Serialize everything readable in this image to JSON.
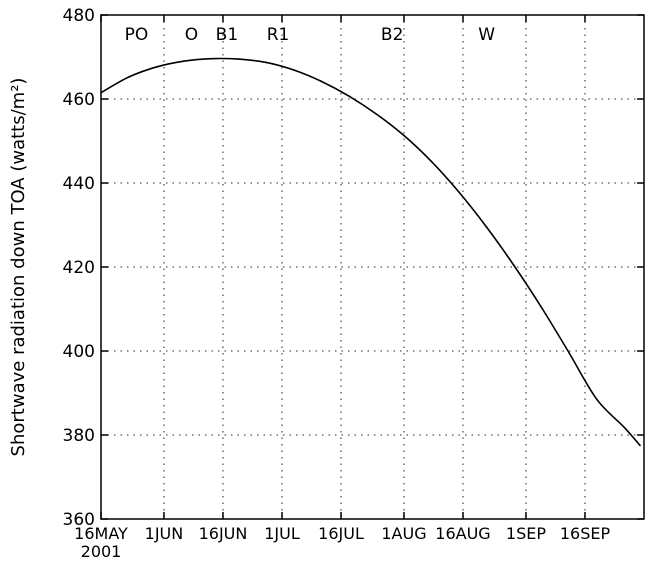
{
  "chart_data": {
    "type": "line",
    "title": "",
    "xlabel": "",
    "ylabel": "Shortwave radiation down TOA (watts/m²)",
    "ylim": [
      360,
      480
    ],
    "xlim": [
      "2001-05-16",
      "2001-09-30"
    ],
    "year_label": "2001",
    "grid": true,
    "yticks": [
      360,
      380,
      400,
      420,
      440,
      460,
      480
    ],
    "xticks": [
      {
        "date": "2001-05-16",
        "label": "16MAY"
      },
      {
        "date": "2001-06-01",
        "label": "1JUN"
      },
      {
        "date": "2001-06-16",
        "label": "16JUN"
      },
      {
        "date": "2001-07-01",
        "label": "1JUL"
      },
      {
        "date": "2001-07-16",
        "label": "16JUL"
      },
      {
        "date": "2001-08-01",
        "label": "1AUG"
      },
      {
        "date": "2001-08-16",
        "label": "16AUG"
      },
      {
        "date": "2001-09-01",
        "label": "1SEP"
      },
      {
        "date": "2001-09-16",
        "label": "16SEP"
      }
    ],
    "annotations": [
      {
        "text": "PO",
        "date": "2001-05-25"
      },
      {
        "text": "O",
        "date": "2001-06-08"
      },
      {
        "text": "B1",
        "date": "2001-06-17"
      },
      {
        "text": "R1",
        "date": "2001-06-30"
      },
      {
        "text": "B2",
        "date": "2001-07-29"
      },
      {
        "text": "W",
        "date": "2001-08-22"
      }
    ],
    "series": [
      {
        "x": [
          "2001-05-16",
          "2001-05-23",
          "2001-05-30",
          "2001-06-06",
          "2001-06-13",
          "2001-06-20",
          "2001-06-27",
          "2001-07-04",
          "2001-07-11",
          "2001-07-18",
          "2001-07-25",
          "2001-08-01",
          "2001-08-08",
          "2001-08-15",
          "2001-08-22",
          "2001-08-29",
          "2001-09-05",
          "2001-09-12",
          "2001-09-19",
          "2001-09-26",
          "2001-09-30"
        ],
        "values": [
          461.5,
          465.2,
          467.6,
          469.0,
          469.6,
          469.5,
          468.7,
          466.9,
          464.2,
          460.7,
          456.4,
          451.3,
          445.1,
          437.8,
          429.5,
          420.3,
          410.3,
          399.5,
          388.5,
          381.8,
          377.5
        ]
      }
    ]
  }
}
